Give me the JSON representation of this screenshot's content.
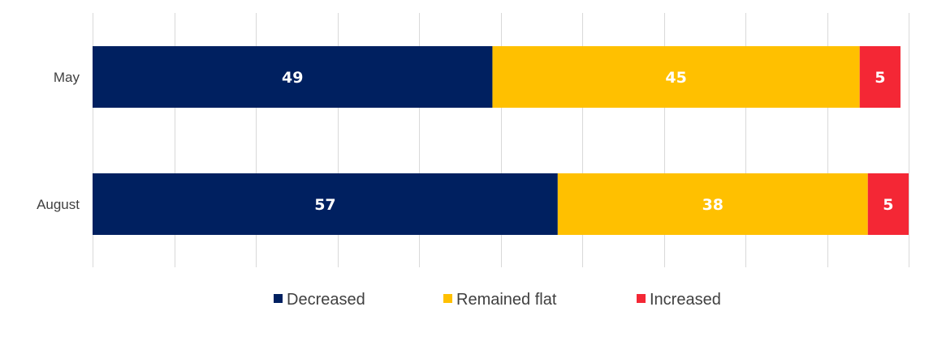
{
  "chart_data": {
    "type": "bar",
    "orientation": "horizontal",
    "stacked": true,
    "categories": [
      "May",
      "August"
    ],
    "series": [
      {
        "name": "Decreased",
        "values": [
          49,
          57
        ],
        "color": "#002060"
      },
      {
        "name": "Remained flat",
        "values": [
          45,
          38
        ],
        "color": "#FFC000"
      },
      {
        "name": "Increased",
        "values": [
          5,
          5
        ],
        "color": "#F42735"
      }
    ],
    "xlim": [
      0,
      100
    ],
    "grid": true,
    "legend": "bottom"
  }
}
